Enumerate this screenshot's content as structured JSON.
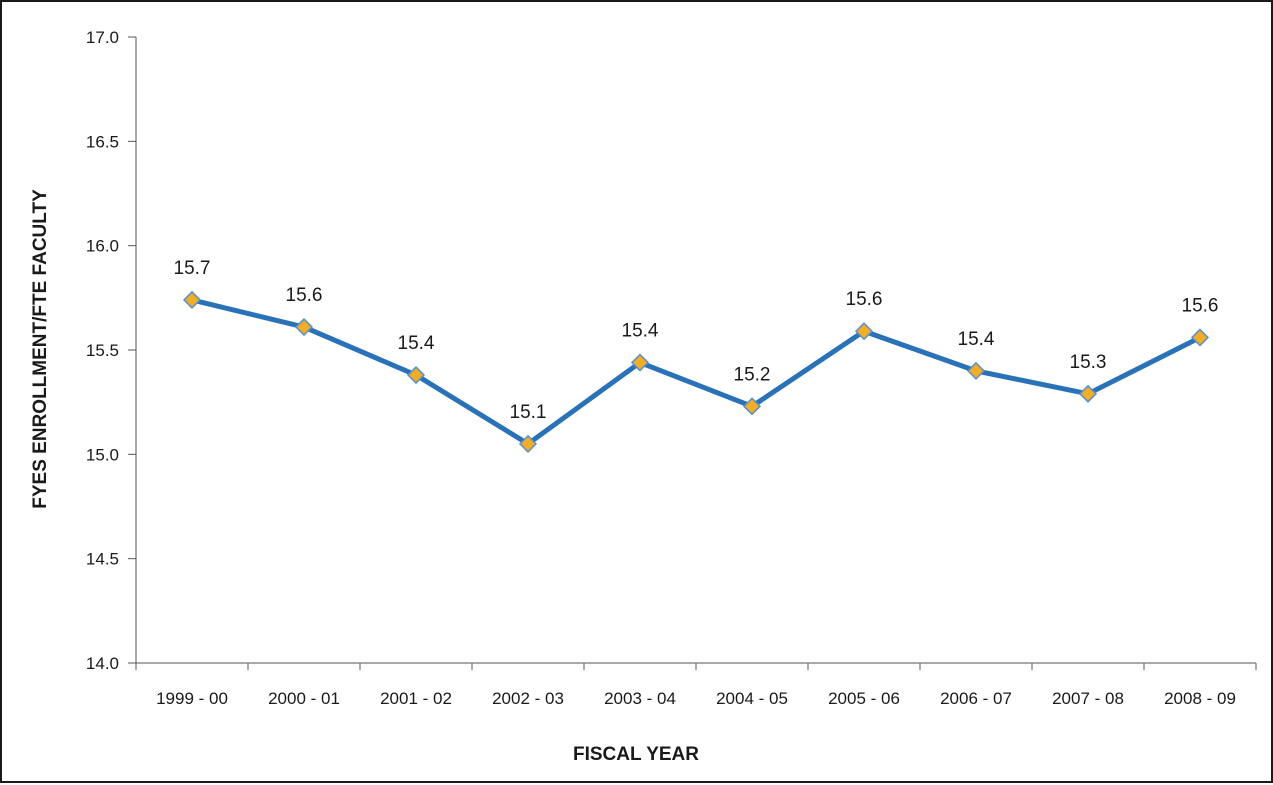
{
  "chart_data": {
    "type": "line",
    "title": "",
    "xlabel": "FISCAL YEAR",
    "ylabel": "FYES ENROLLMENT/FTE FACULTY",
    "categories": [
      "1999 - 00",
      "2000 - 01",
      "2001 - 02",
      "2002 - 03",
      "2003 - 04",
      "2004 - 05",
      "2005 - 06",
      "2006 - 07",
      "2007 - 08",
      "2008 - 09"
    ],
    "series": [
      {
        "values": [
          15.74,
          15.61,
          15.38,
          15.05,
          15.44,
          15.23,
          15.59,
          15.4,
          15.29,
          15.56
        ],
        "data_labels": [
          "15.7",
          "15.6",
          "15.4",
          "15.1",
          "15.4",
          "15.2",
          "15.6",
          "15.4",
          "15.3",
          "15.6"
        ]
      }
    ],
    "ylim": [
      14.0,
      17.0
    ],
    "y_ticks": [
      14.0,
      14.5,
      15.0,
      15.5,
      16.0,
      16.5,
      17.0
    ],
    "y_tick_labels": [
      "14.0",
      "14.5",
      "15.0",
      "15.5",
      "16.0",
      "16.5",
      "17.0"
    ],
    "grid": false,
    "legend": "none",
    "colors": {
      "line": "#2a72b8",
      "marker_fill": "#f0ad28",
      "marker_stroke": "#5a8fc8",
      "frame": "#1a1a1a",
      "axis": "#555555"
    },
    "marker": "diamond"
  }
}
